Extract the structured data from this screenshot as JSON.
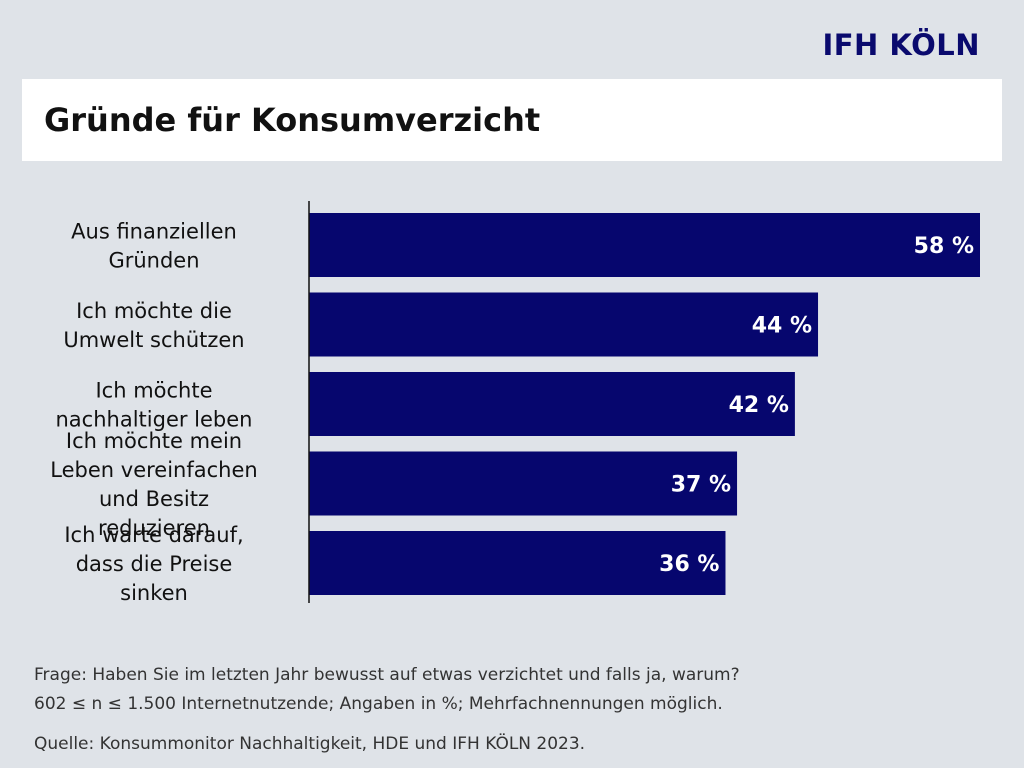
{
  "brand": "IFH KÖLN",
  "title": "Gründe für Konsumverzicht",
  "chart_data": {
    "type": "bar",
    "orientation": "horizontal",
    "categories": [
      "Aus finanziellen Gründen",
      "Ich möchte die Umwelt schützen",
      "Ich möchte nachhaltiger leben",
      "Ich möchte mein Leben vereinfachen und Besitz reduzieren",
      "Ich warte darauf, dass die Preise sinken"
    ],
    "category_lines": [
      [
        "Aus finanziellen",
        "Gründen"
      ],
      [
        "Ich möchte die",
        "Umwelt schützen"
      ],
      [
        "Ich möchte",
        "nachhaltiger leben"
      ],
      [
        "Ich möchte mein",
        "Leben vereinfachen",
        "und Besitz",
        "reduzieren"
      ],
      [
        "Ich warte darauf,",
        "dass die Preise",
        "sinken"
      ]
    ],
    "values": [
      58,
      44,
      42,
      37,
      36
    ],
    "data_labels": [
      "58 %",
      "44 %",
      "42 %",
      "37 %",
      "36 %"
    ],
    "xlim": [
      0,
      58
    ],
    "bar_color": "#06066e",
    "label_color": "#ffffff"
  },
  "notes": {
    "line1": "Frage: Haben Sie im letzten Jahr bewusst auf etwas verzichtet und falls ja, warum?",
    "line2": "602 ≤ n ≤ 1.500 Internetnutzende; Angaben in %; Mehrfachnennungen möglich."
  },
  "source": "Quelle: Konsummonitor Nachhaltigkeit, HDE und IFH KÖLN 2023."
}
